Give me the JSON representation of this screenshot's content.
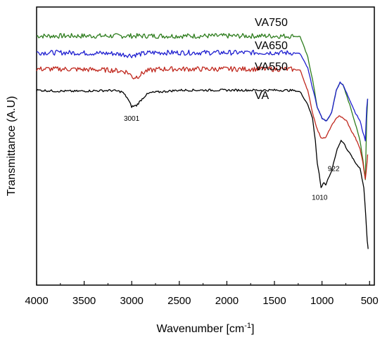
{
  "chart_data": {
    "type": "line",
    "xlabel": "Wavenumber [cm⁻¹]",
    "xlabel_base": "Wavenumber [cm",
    "xlabel_sup": "-1",
    "xlabel_end": "]",
    "ylabel": "Transmittance (A.U)",
    "xlim": [
      4000,
      450
    ],
    "x_reversed": true,
    "ylim": [
      0,
      1
    ],
    "y_ticks_shown": false,
    "x_ticks": [
      "4000",
      "3500",
      "3000",
      "2500",
      "2000",
      "1500",
      "1000",
      "500"
    ],
    "grid": false,
    "legend": "inline labels",
    "series": [
      {
        "name": "VA750",
        "color": "#2e7d1e",
        "points": [
          [
            4000,
            0.896
          ],
          [
            3500,
            0.896
          ],
          [
            3000,
            0.896
          ],
          [
            2500,
            0.896
          ],
          [
            2000,
            0.896
          ],
          [
            1500,
            0.896
          ],
          [
            1300,
            0.895
          ],
          [
            1230,
            0.894
          ],
          [
            1150,
            0.82
          ],
          [
            1100,
            0.74
          ],
          [
            1050,
            0.64
          ],
          [
            1000,
            0.6
          ],
          [
            950,
            0.59
          ],
          [
            900,
            0.62
          ],
          [
            850,
            0.7
          ],
          [
            810,
            0.73
          ],
          [
            780,
            0.72
          ],
          [
            740,
            0.68
          ],
          [
            700,
            0.64
          ],
          [
            650,
            0.58
          ],
          [
            600,
            0.52
          ],
          [
            570,
            0.45
          ],
          [
            545,
            0.38
          ],
          [
            530,
            0.6
          ],
          [
            520,
            0.67
          ]
        ]
      },
      {
        "name": "VA650",
        "color": "#1f1fd0",
        "points": [
          [
            4000,
            0.836
          ],
          [
            3700,
            0.836
          ],
          [
            3200,
            0.833
          ],
          [
            3000,
            0.826
          ],
          [
            2950,
            0.829
          ],
          [
            2800,
            0.836
          ],
          [
            2500,
            0.836
          ],
          [
            2000,
            0.836
          ],
          [
            1500,
            0.836
          ],
          [
            1300,
            0.835
          ],
          [
            1230,
            0.832
          ],
          [
            1150,
            0.78
          ],
          [
            1100,
            0.71
          ],
          [
            1050,
            0.64
          ],
          [
            1000,
            0.6
          ],
          [
            950,
            0.59
          ],
          [
            900,
            0.62
          ],
          [
            850,
            0.7
          ],
          [
            810,
            0.73
          ],
          [
            780,
            0.72
          ],
          [
            740,
            0.69
          ],
          [
            700,
            0.66
          ],
          [
            650,
            0.62
          ],
          [
            600,
            0.59
          ],
          [
            570,
            0.55
          ],
          [
            545,
            0.52
          ],
          [
            530,
            0.64
          ],
          [
            520,
            0.67
          ]
        ]
      },
      {
        "name": "VA550",
        "color": "#c0281e",
        "points": [
          [
            4000,
            0.777
          ],
          [
            3700,
            0.777
          ],
          [
            3200,
            0.773
          ],
          [
            3050,
            0.767
          ],
          [
            2980,
            0.746
          ],
          [
            2930,
            0.752
          ],
          [
            2850,
            0.77
          ],
          [
            2700,
            0.777
          ],
          [
            2500,
            0.777
          ],
          [
            2000,
            0.777
          ],
          [
            1500,
            0.777
          ],
          [
            1300,
            0.776
          ],
          [
            1230,
            0.773
          ],
          [
            1150,
            0.7
          ],
          [
            1100,
            0.62
          ],
          [
            1050,
            0.56
          ],
          [
            1010,
            0.53
          ],
          [
            960,
            0.53
          ],
          [
            920,
            0.56
          ],
          [
            870,
            0.59
          ],
          [
            820,
            0.61
          ],
          [
            780,
            0.6
          ],
          [
            740,
            0.59
          ],
          [
            700,
            0.56
          ],
          [
            650,
            0.53
          ],
          [
            600,
            0.49
          ],
          [
            570,
            0.44
          ],
          [
            545,
            0.38
          ],
          [
            530,
            0.43
          ],
          [
            520,
            0.47
          ]
        ]
      },
      {
        "name": "VA",
        "color": "#000000",
        "points": [
          [
            4000,
            0.701
          ],
          [
            3800,
            0.698
          ],
          [
            3600,
            0.697
          ],
          [
            3400,
            0.699
          ],
          [
            3200,
            0.7
          ],
          [
            3100,
            0.695
          ],
          [
            3050,
            0.675
          ],
          [
            3001,
            0.642
          ],
          [
            2950,
            0.646
          ],
          [
            2900,
            0.666
          ],
          [
            2850,
            0.684
          ],
          [
            2800,
            0.692
          ],
          [
            2600,
            0.698
          ],
          [
            2500,
            0.701
          ],
          [
            2000,
            0.701
          ],
          [
            1500,
            0.701
          ],
          [
            1300,
            0.7
          ],
          [
            1230,
            0.695
          ],
          [
            1150,
            0.65
          ],
          [
            1100,
            0.6
          ],
          [
            1070,
            0.52
          ],
          [
            1050,
            0.44
          ],
          [
            1030,
            0.4
          ],
          [
            1010,
            0.35
          ],
          [
            980,
            0.37
          ],
          [
            960,
            0.36
          ],
          [
            940,
            0.38
          ],
          [
            922,
            0.39
          ],
          [
            900,
            0.41
          ],
          [
            870,
            0.45
          ],
          [
            840,
            0.49
          ],
          [
            800,
            0.52
          ],
          [
            770,
            0.51
          ],
          [
            740,
            0.49
          ],
          [
            700,
            0.47
          ],
          [
            650,
            0.44
          ],
          [
            600,
            0.42
          ],
          [
            560,
            0.35
          ],
          [
            540,
            0.25
          ],
          [
            525,
            0.16
          ],
          [
            515,
            0.13
          ]
        ]
      }
    ],
    "annotations": [
      {
        "text": "3001",
        "x": 3001,
        "y": 0.642
      },
      {
        "text": "1010",
        "x": 1010,
        "y": 0.35
      },
      {
        "text": "922",
        "x": 922,
        "y": 0.39
      }
    ]
  }
}
